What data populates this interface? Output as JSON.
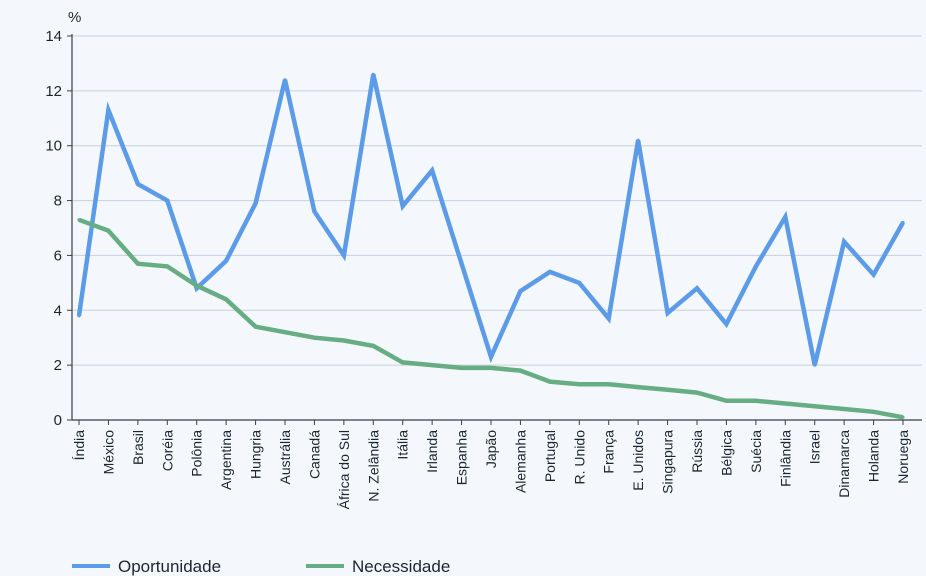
{
  "chart_data": {
    "type": "line",
    "ylabel": "%",
    "ylim": [
      0,
      14
    ],
    "yticks": [
      "0",
      "2",
      "4",
      "6",
      "8",
      "10",
      "12",
      "14"
    ],
    "grid": true,
    "legend_position": "bottom-left",
    "categories": [
      "Índia",
      "México",
      "Brasil",
      "Coréia",
      "Polônia",
      "Argentina",
      "Hungria",
      "Austrália",
      "Canadá",
      "África do Sul",
      "N. Zelândia",
      "Itália",
      "Irlanda",
      "Espanha",
      "Japão",
      "Alemanha",
      "Portugal",
      "R. Unido",
      "França",
      "E. Unidos",
      "Singapura",
      "Rússia",
      "Bélgica",
      "Suécia",
      "Finlândia",
      "Israel",
      "Dinamarca",
      "Holanda",
      "Noruega"
    ],
    "series": [
      {
        "name": "Oportunidade",
        "color": "#5b9be8",
        "values": [
          3.8,
          11.3,
          8.6,
          8.0,
          4.8,
          5.8,
          7.9,
          12.4,
          7.6,
          6.0,
          12.6,
          7.8,
          9.1,
          5.7,
          2.3,
          4.7,
          5.4,
          5.0,
          3.7,
          10.2,
          3.9,
          4.8,
          3.5,
          5.6,
          7.4,
          2.0,
          6.5,
          5.3,
          7.2
        ]
      },
      {
        "name": "Necessidade",
        "color": "#67ad83",
        "values": [
          7.3,
          6.9,
          5.7,
          5.6,
          4.9,
          4.4,
          3.4,
          3.2,
          3.0,
          2.9,
          2.7,
          2.1,
          2.0,
          1.9,
          1.9,
          1.8,
          1.4,
          1.3,
          1.3,
          1.2,
          1.1,
          1.0,
          0.7,
          0.7,
          0.6,
          0.5,
          0.4,
          0.3,
          0.1
        ]
      }
    ]
  }
}
